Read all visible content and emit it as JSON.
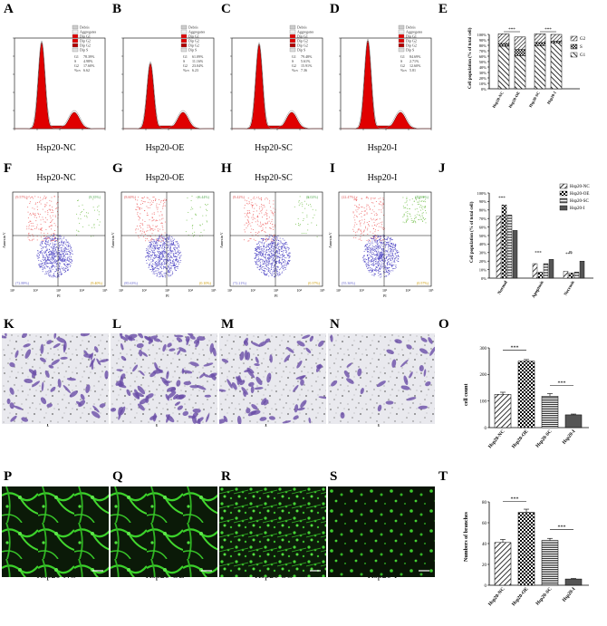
{
  "labels": {
    "row1": [
      "A",
      "B",
      "C",
      "D",
      "E"
    ],
    "row2": [
      "F",
      "G",
      "H",
      "I",
      "J"
    ],
    "row3": [
      "K",
      "L",
      "M",
      "N",
      "O"
    ],
    "row4": [
      "P",
      "Q",
      "R",
      "S",
      "T"
    ]
  },
  "groups": [
    "Hsp20-NC",
    "Hsp20-OE",
    "Hsp20-SC",
    "Hsp20-I"
  ],
  "hist_legend": [
    "Debris",
    "Aggregates",
    "Dip G1",
    "Dip G2",
    "Dip G2",
    "Dip S"
  ],
  "hist_stats": [
    {
      "G1": "78.39%",
      "S": "4.98%",
      "G2": "17.60%",
      "cv": "6.62"
    },
    {
      "G1": "61.09%",
      "S": "11.16%",
      "G2": "23.04%",
      "cv": "6.23"
    },
    {
      "G1": "79.48%",
      "S": "5.61%",
      "G2": "15.91%",
      "cv": "7.36"
    },
    {
      "G1": "84.69%",
      "S": "2.71%",
      "G2": "12.60%",
      "cv": "5.81"
    }
  ],
  "hist_stat_keys": [
    "G1",
    "S",
    "G2",
    "%cv"
  ],
  "flow_quadrants": [
    {
      "ul": "(9.57%)",
      "ur": "(8.35%)",
      "ll": "(72.88%)",
      "lr": "(9.40%)"
    },
    {
      "ul": "(8.60%)",
      "ur": "(6.44%)",
      "ll": "(85.63%)",
      "lr": "(0.10%)"
    },
    {
      "ul": "(8.42%)",
      "ur": "(8.02%)",
      "ll": "(72.21%)",
      "lr": "(0.37%)"
    },
    {
      "ul": "(22.47%)",
      "ur": "(22.61%)",
      "ll": "(55.36%)",
      "lr": "(0.57%)"
    }
  ],
  "flow_axes": {
    "x": "PI",
    "y": "Annexin V",
    "ticks": [
      "10¹",
      "10²",
      "10³",
      "10⁴",
      "10⁵"
    ]
  },
  "sig": "***",
  "ns": "ns",
  "chart_data": [
    {
      "type": "bar",
      "panel": "E",
      "categories": [
        "Hsp20-NC",
        "Hsp20-OE",
        "Hsp20-SC",
        "Hsp20-I"
      ],
      "series": [
        {
          "name": "G1",
          "values": [
            78.39,
            61.09,
            79.48,
            84.69
          ]
        },
        {
          "name": "S",
          "values": [
            4.98,
            11.16,
            5.61,
            2.71
          ]
        },
        {
          "name": "G2",
          "values": [
            17.6,
            23.04,
            15.91,
            12.6
          ]
        }
      ],
      "ylabel": "Cell population (% of total cell)",
      "yticks": [
        "0%",
        "10%",
        "20%",
        "30%",
        "40%",
        "50%",
        "60%",
        "70%",
        "80%",
        "90%",
        "100%"
      ],
      "ylim": [
        0,
        100
      ],
      "stacked": true,
      "legend": "right"
    },
    {
      "type": "bar",
      "panel": "J",
      "categories": [
        "Normal",
        "Apoptosis",
        "Necrosis"
      ],
      "series": [
        {
          "name": "Hsp20-NC",
          "values": [
            73,
            17,
            8
          ]
        },
        {
          "name": "Hsp20-OE",
          "values": [
            86,
            7,
            6
          ]
        },
        {
          "name": "Hsp20-SC",
          "values": [
            74,
            17,
            7
          ]
        },
        {
          "name": "Hsp20-I",
          "values": [
            56,
            22,
            20
          ]
        }
      ],
      "ylabel": "Cell population (% of total cell)",
      "yticks": [
        "0%",
        "10%",
        "20%",
        "30%",
        "40%",
        "50%",
        "60%",
        "70%",
        "80%",
        "90%",
        "100%"
      ],
      "ylim": [
        0,
        100
      ],
      "legend": "top-right"
    },
    {
      "type": "bar",
      "panel": "O",
      "categories": [
        "Hsp20-NC",
        "Hsp20-OE",
        "Hsp20-SC",
        "Hsp20-I"
      ],
      "values": [
        125,
        250,
        118,
        48
      ],
      "errors": [
        8,
        6,
        10,
        3
      ],
      "ylabel": "cell count",
      "yticks": [
        "0",
        "100",
        "200",
        "300"
      ],
      "ylim": [
        0,
        300
      ]
    },
    {
      "type": "bar",
      "panel": "T",
      "categories": [
        "Hsp20-NC",
        "Hsp20-OE",
        "Hsp20-SC",
        "Hsp20-I"
      ],
      "values": [
        41,
        70,
        43,
        6
      ],
      "errors": [
        3,
        3,
        2,
        0.5
      ],
      "ylabel": "Numbers of branches",
      "yticks": [
        "0",
        "20",
        "40",
        "60",
        "80"
      ],
      "ylim": [
        0,
        80
      ]
    }
  ]
}
